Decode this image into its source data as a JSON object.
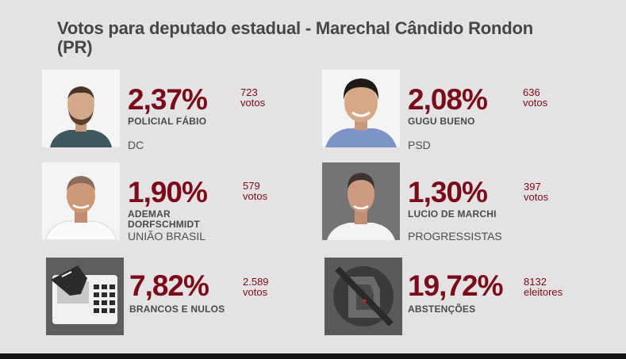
{
  "title": "Votos para deputado estadual - Marechal Cândido Rondon (PR)",
  "accent_color": "#7a0b1b",
  "cards": [
    {
      "pct": "2,37%",
      "count": "723",
      "unit": "votos",
      "name1": "POLICIAL FÁBIO",
      "name2": "",
      "party": "DC",
      "photo": "candidate-photo"
    },
    {
      "pct": "2,08%",
      "count": "636",
      "unit": "votos",
      "name1": "GUGU BUENO",
      "name2": "",
      "party": "PSD",
      "photo": "candidate-photo"
    },
    {
      "pct": "1,90%",
      "count": "579",
      "unit": "votos",
      "name1": "ADEMAR",
      "name2": "DORFSCHMIDT",
      "party": "UNIÃO BRASIL",
      "photo": "candidate-photo"
    },
    {
      "pct": "1,30%",
      "count": "397",
      "unit": "votos",
      "name1": "LUCIO DE MARCHI",
      "name2": "",
      "party": "PROGRESSISTAS",
      "photo": "candidate-photo"
    },
    {
      "pct": "7,82%",
      "count": "2.589",
      "unit": "votos",
      "name1": "BRANCOS E NULOS",
      "name2": "",
      "party": "",
      "photo": "voting-machine-icon"
    },
    {
      "pct": "19,72%",
      "count": "8132",
      "unit": "eleitores",
      "name1": "ABSTENÇÕES",
      "name2": "",
      "party": "",
      "photo": "abstention-icon"
    }
  ]
}
